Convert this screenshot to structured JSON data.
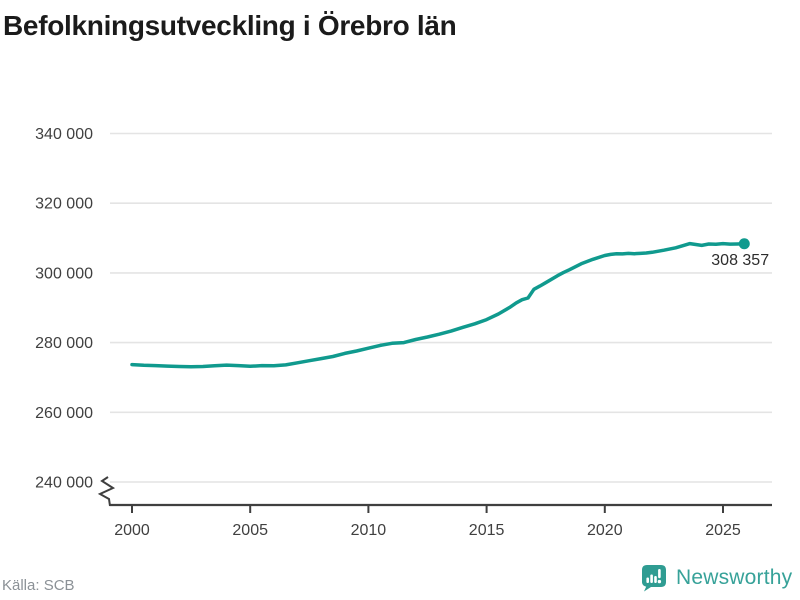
{
  "header": {
    "title": "Befolkningsutveckling i Örebro län"
  },
  "annotation": {
    "end_value_label": "308 357"
  },
  "footer": {
    "source": "Källa: SCB",
    "brand": "Newsworthy"
  },
  "colors": {
    "line": "#109a8e",
    "grid": "#e4e4e4",
    "axis": "#3f3f3f",
    "tick_text": "#404040",
    "title_text": "#1b1b1b",
    "source_text": "#8b9196",
    "brand_icon": "#2f9c92",
    "brand_text": "#37a299",
    "end_label_text": "#2d2d2d",
    "background": "#ffffff"
  },
  "chart_data": {
    "type": "line",
    "title": "Befolkningsutveckling i Örebro län",
    "source": "Källa: SCB",
    "xlabel": "",
    "ylabel": "",
    "unit": "inhabitants",
    "grid": "horizontal",
    "legend": false,
    "y_axis_break": true,
    "x_range": [
      1999.1,
      2027
    ],
    "y_range_shown": [
      236000,
      345000
    ],
    "x_ticks": [
      {
        "value": 2000,
        "label": "2000"
      },
      {
        "value": 2005,
        "label": "2005"
      },
      {
        "value": 2010,
        "label": "2010"
      },
      {
        "value": 2015,
        "label": "2015"
      },
      {
        "value": 2020,
        "label": "2020"
      },
      {
        "value": 2025,
        "label": "2025"
      }
    ],
    "y_ticks": [
      {
        "value": 340000,
        "label": "340 000"
      },
      {
        "value": 320000,
        "label": "320 000"
      },
      {
        "value": 300000,
        "label": "300 000"
      },
      {
        "value": 280000,
        "label": "280 000"
      },
      {
        "value": 260000,
        "label": "260 000"
      },
      {
        "value": 240000,
        "label": "240 000"
      }
    ],
    "series": [
      {
        "name": "Örebro län",
        "color": "#109a8e",
        "end_label": "308 357",
        "points": [
          [
            2000.0,
            273700
          ],
          [
            2000.5,
            273500
          ],
          [
            2001.0,
            273400
          ],
          [
            2001.5,
            273250
          ],
          [
            2002.0,
            273150
          ],
          [
            2002.5,
            273050
          ],
          [
            2003.0,
            273150
          ],
          [
            2003.5,
            273350
          ],
          [
            2004.0,
            273550
          ],
          [
            2004.5,
            273400
          ],
          [
            2005.0,
            273200
          ],
          [
            2005.5,
            273400
          ],
          [
            2006.0,
            273350
          ],
          [
            2006.5,
            273600
          ],
          [
            2007.0,
            274200
          ],
          [
            2007.5,
            274800
          ],
          [
            2008.0,
            275400
          ],
          [
            2008.5,
            276000
          ],
          [
            2009.0,
            276900
          ],
          [
            2009.5,
            277600
          ],
          [
            2010.0,
            278400
          ],
          [
            2010.5,
            279200
          ],
          [
            2011.0,
            279800
          ],
          [
            2011.5,
            280000
          ],
          [
            2012.0,
            280900
          ],
          [
            2012.5,
            281600
          ],
          [
            2013.0,
            282400
          ],
          [
            2013.5,
            283300
          ],
          [
            2014.0,
            284400
          ],
          [
            2014.5,
            285400
          ],
          [
            2015.0,
            286600
          ],
          [
            2015.5,
            288200
          ],
          [
            2016.0,
            290200
          ],
          [
            2016.25,
            291400
          ],
          [
            2016.5,
            292300
          ],
          [
            2016.75,
            292800
          ],
          [
            2017.0,
            295300
          ],
          [
            2017.25,
            296200
          ],
          [
            2017.5,
            297200
          ],
          [
            2018.0,
            299200
          ],
          [
            2018.25,
            300100
          ],
          [
            2018.5,
            300900
          ],
          [
            2019.0,
            302600
          ],
          [
            2019.5,
            303900
          ],
          [
            2020.0,
            305000
          ],
          [
            2020.25,
            305300
          ],
          [
            2020.5,
            305500
          ],
          [
            2020.75,
            305450
          ],
          [
            2021.0,
            305600
          ],
          [
            2021.25,
            305500
          ],
          [
            2021.5,
            305600
          ],
          [
            2021.75,
            305700
          ],
          [
            2022.0,
            305900
          ],
          [
            2022.5,
            306500
          ],
          [
            2023.0,
            307200
          ],
          [
            2023.25,
            307700
          ],
          [
            2023.6,
            308400
          ],
          [
            2024.1,
            307900
          ],
          [
            2024.4,
            308300
          ],
          [
            2024.7,
            308200
          ],
          [
            2025.0,
            308400
          ],
          [
            2025.3,
            308250
          ],
          [
            2025.6,
            308300
          ],
          [
            2025.9,
            308357
          ]
        ]
      }
    ]
  }
}
